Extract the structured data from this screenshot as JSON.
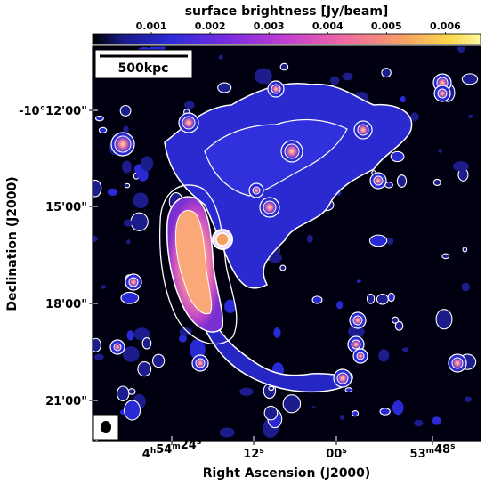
{
  "colorbar": {
    "title": "surface brightness [Jy/beam]",
    "ticks": [
      "0.001",
      "0.002",
      "0.003",
      "0.004",
      "0.005",
      "0.006"
    ],
    "tick_values": [
      0.001,
      0.002,
      0.003,
      0.004,
      0.005,
      0.006
    ],
    "range": [
      0.0,
      0.0066
    ]
  },
  "scale_bar": {
    "label": "500kpc"
  },
  "axes": {
    "xlabel": "Right Ascension (J2000)",
    "ylabel": "Declination (J2000)",
    "ra_ticks": [
      {
        "main": "4",
        "sup1": "h",
        "main2": "54",
        "sup2": "m",
        "main3": "24",
        "sup3": "s"
      },
      {
        "main": "",
        "sup1": "",
        "main2": "",
        "sup2": "",
        "main3": "12",
        "sup3": "s"
      },
      {
        "main": "",
        "sup1": "",
        "main2": "",
        "sup2": "",
        "main3": "00",
        "sup3": "s"
      },
      {
        "main": "",
        "sup1": "",
        "main2": "53",
        "sup2": "m",
        "main3": "48",
        "sup3": "s"
      }
    ],
    "dec_ticks": [
      "-10°12'00\"",
      "15'00\"",
      "18'00\"",
      "21'00\""
    ]
  },
  "colors": {
    "background": "#000010",
    "emission_blue": "#2424d8",
    "emission_purple": "#9a32d6",
    "emission_pink": "#f05aa8",
    "emission_orange": "#f79a70",
    "emission_yellow": "#fcd94a",
    "contour": "#ffffff"
  },
  "beam": {
    "shape": "ellipse"
  }
}
